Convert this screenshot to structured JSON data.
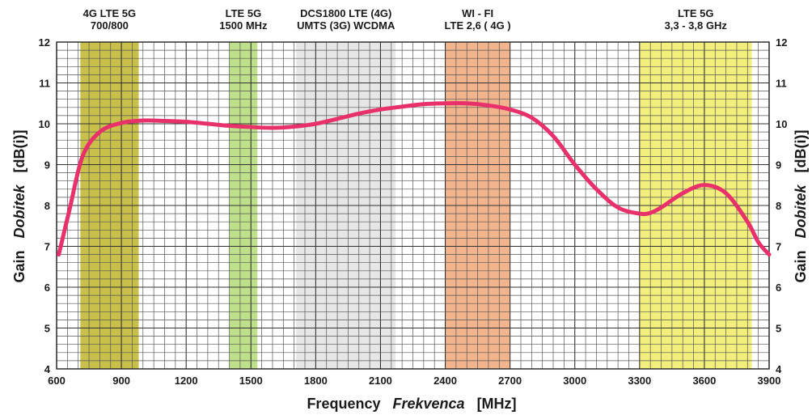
{
  "chart_data": {
    "type": "line",
    "xlabel_parts": [
      "Frequency",
      "Frekvenca",
      "[MHz]"
    ],
    "ylabel_parts": [
      "Gain",
      "Dobitek",
      "[dB(i)]"
    ],
    "xlim": [
      600,
      3900
    ],
    "ylim": [
      4,
      12
    ],
    "x_ticks": [
      "600",
      "900",
      "1200",
      "1500",
      "1800",
      "2100",
      "2400",
      "2700",
      "3000",
      "3300",
      "3600",
      "3900"
    ],
    "y_ticks": [
      "4",
      "5",
      "6",
      "7",
      "8",
      "9",
      "10",
      "11",
      "12"
    ],
    "grid": true,
    "bands": [
      {
        "label_lines": [
          "4G LTE 5G",
          "700/800"
        ],
        "start": 710,
        "end": 980,
        "color": "#c8c04a"
      },
      {
        "label_lines": [
          "LTE 5G",
          "1500 MHz"
        ],
        "start": 1400,
        "end": 1530,
        "color": "#bfe08a"
      },
      {
        "label_lines": [
          "DCS1800 LTE (4G)",
          "UMTS (3G) WCDMA"
        ],
        "start": 1710,
        "end": 2170,
        "color": "#e6e6e6"
      },
      {
        "label_lines": [
          "WI - FI",
          "LTE 2,6 ( 4G )"
        ],
        "start": 2400,
        "end": 2700,
        "color": "#f2b48c"
      },
      {
        "label_lines": [
          "LTE 5G",
          "3,3 - 3,8 GHz"
        ],
        "start": 3300,
        "end": 3820,
        "color": "#f2ef7c"
      }
    ],
    "series": [
      {
        "color": "#e8306a",
        "x": [
          610,
          660,
          720,
          800,
          900,
          1000,
          1100,
          1200,
          1300,
          1400,
          1500,
          1600,
          1700,
          1800,
          1900,
          2000,
          2100,
          2200,
          2300,
          2400,
          2500,
          2600,
          2700,
          2800,
          2900,
          3000,
          3100,
          3200,
          3300,
          3350,
          3400,
          3500,
          3600,
          3700,
          3800,
          3850,
          3900
        ],
        "y": [
          6.8,
          7.9,
          9.2,
          9.8,
          10.02,
          10.08,
          10.07,
          10.05,
          10.0,
          9.95,
          9.92,
          9.9,
          9.93,
          10.0,
          10.12,
          10.25,
          10.35,
          10.42,
          10.48,
          10.5,
          10.5,
          10.45,
          10.35,
          10.15,
          9.7,
          9.0,
          8.4,
          7.95,
          7.8,
          7.82,
          7.95,
          8.3,
          8.5,
          8.3,
          7.6,
          7.1,
          6.8
        ]
      }
    ]
  }
}
